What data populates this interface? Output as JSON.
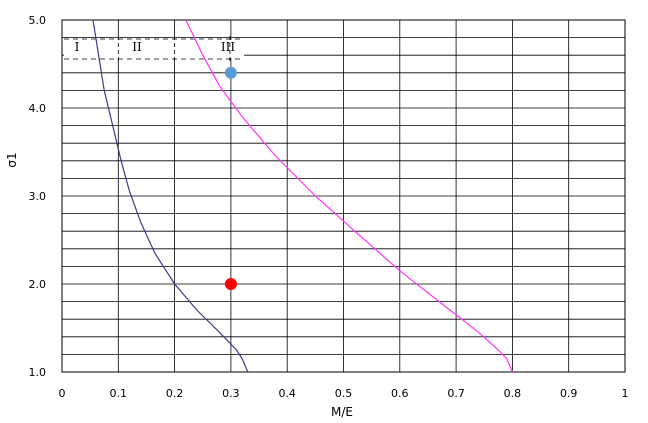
{
  "chart_data": {
    "type": "line",
    "xlabel": "M/E",
    "ylabel": "σ1",
    "xlim": [
      0,
      1
    ],
    "ylim": [
      1,
      5
    ],
    "xticks": [
      "0",
      "0.1",
      "0.2",
      "0.3",
      "0.4",
      "0.5",
      "0.6",
      "0.7",
      "0.8",
      "0.9",
      "1"
    ],
    "yticks": [
      "1.0",
      "2.0",
      "3.0",
      "4.0",
      "5.0"
    ],
    "grid": true,
    "zone_labels": [
      "I",
      "II",
      "III"
    ],
    "series": [
      {
        "color": "#3b3b8f",
        "points": [
          [
            0.055,
            5.0
          ],
          [
            0.065,
            4.6
          ],
          [
            0.075,
            4.2
          ],
          [
            0.09,
            3.8
          ],
          [
            0.105,
            3.4
          ],
          [
            0.12,
            3.05
          ],
          [
            0.14,
            2.7
          ],
          [
            0.165,
            2.35
          ],
          [
            0.2,
            2.0
          ],
          [
            0.24,
            1.7
          ],
          [
            0.28,
            1.45
          ],
          [
            0.31,
            1.25
          ],
          [
            0.32,
            1.15
          ],
          [
            0.33,
            1.0
          ]
        ]
      },
      {
        "color": "#ff33ff",
        "points": [
          [
            0.22,
            5.0
          ],
          [
            0.25,
            4.6
          ],
          [
            0.28,
            4.25
          ],
          [
            0.32,
            3.9
          ],
          [
            0.38,
            3.45
          ],
          [
            0.45,
            3.0
          ],
          [
            0.52,
            2.6
          ],
          [
            0.6,
            2.15
          ],
          [
            0.68,
            1.75
          ],
          [
            0.74,
            1.45
          ],
          [
            0.775,
            1.25
          ],
          [
            0.79,
            1.15
          ],
          [
            0.8,
            1.0
          ]
        ]
      }
    ],
    "points": [
      {
        "x": 0.3,
        "y": 4.4,
        "color": "#5b9bd5"
      },
      {
        "x": 0.3,
        "y": 2.0,
        "color": "#ff0000"
      }
    ]
  }
}
